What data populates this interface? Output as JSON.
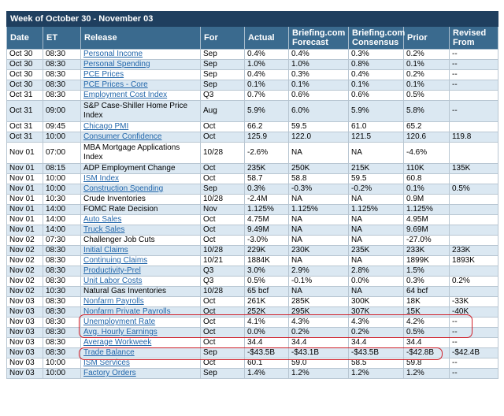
{
  "title": "Week of October 30 - November 03",
  "columns": {
    "date": "Date",
    "et": "ET",
    "release": "Release",
    "for": "For",
    "actual": "Actual",
    "briefing_line1": "Briefing.com",
    "briefing_line2": "Forecast",
    "consensus_line1": "Briefing.com",
    "consensus_line2": "Consensus",
    "prior": "Prior",
    "revised_line1": "Revised",
    "revised_line2": "From"
  },
  "rows": [
    {
      "date": "Oct 30",
      "et": "08:30",
      "release": "Personal Income",
      "link": true,
      "for": "Sep",
      "actual": "0.4%",
      "forecast": "0.4%",
      "consensus": "0.3%",
      "prior": "0.2%",
      "revised": "--"
    },
    {
      "date": "Oct 30",
      "et": "08:30",
      "release": "Personal Spending",
      "link": true,
      "for": "Sep",
      "actual": "1.0%",
      "forecast": "1.0%",
      "consensus": "0.8%",
      "prior": "0.1%",
      "revised": "--"
    },
    {
      "date": "Oct 30",
      "et": "08:30",
      "release": "PCE Prices",
      "link": true,
      "for": "Sep",
      "actual": "0.4%",
      "forecast": "0.3%",
      "consensus": "0.4%",
      "prior": "0.2%",
      "revised": "--"
    },
    {
      "date": "Oct 30",
      "et": "08:30",
      "release": "PCE Prices - Core",
      "link": true,
      "for": "Sep",
      "actual": "0.1%",
      "forecast": "0.1%",
      "consensus": "0.1%",
      "prior": "0.1%",
      "revised": "--"
    },
    {
      "date": "Oct 31",
      "et": "08:30",
      "release": "Employment Cost Index",
      "link": true,
      "for": "Q3",
      "actual": "0.7%",
      "forecast": "0.6%",
      "consensus": "0.6%",
      "prior": "0.5%",
      "revised": ""
    },
    {
      "date": "Oct 31",
      "et": "09:00",
      "release": "S&P Case-Shiller Home Price Index",
      "link": false,
      "for": "Aug",
      "actual": "5.9%",
      "forecast": "6.0%",
      "consensus": "5.9%",
      "prior": "5.8%",
      "revised": "--",
      "tall": true
    },
    {
      "date": "Oct 31",
      "et": "09:45",
      "release": "Chicago PMI",
      "link": true,
      "for": "Oct",
      "actual": "66.2",
      "forecast": "59.5",
      "consensus": "61.0",
      "prior": "65.2",
      "revised": ""
    },
    {
      "date": "Oct 31",
      "et": "10:00",
      "release": "Consumer Confidence",
      "link": true,
      "for": "Oct",
      "actual": "125.9",
      "forecast": "122.0",
      "consensus": "121.5",
      "prior": "120.6",
      "revised": "119.8"
    },
    {
      "date": "Nov 01",
      "et": "07:00",
      "release": "MBA Mortgage Applications Index",
      "link": false,
      "for": "10/28",
      "actual": "-2.6%",
      "forecast": "NA",
      "consensus": "NA",
      "prior": "-4.6%",
      "revised": "",
      "tall": true
    },
    {
      "date": "Nov 01",
      "et": "08:15",
      "release": "ADP Employment Change",
      "link": false,
      "for": "Oct",
      "actual": "235K",
      "forecast": "250K",
      "consensus": "215K",
      "prior": "110K",
      "revised": "135K"
    },
    {
      "date": "Nov 01",
      "et": "10:00",
      "release": "ISM Index",
      "link": true,
      "for": "Oct",
      "actual": "58.7",
      "forecast": "58.8",
      "consensus": "59.5",
      "prior": "60.8",
      "revised": ""
    },
    {
      "date": "Nov 01",
      "et": "10:00",
      "release": "Construction Spending",
      "link": true,
      "for": "Sep",
      "actual": "0.3%",
      "forecast": "-0.3%",
      "consensus": "-0.2%",
      "prior": "0.1%",
      "revised": "0.5%"
    },
    {
      "date": "Nov 01",
      "et": "10:30",
      "release": "Crude Inventories",
      "link": false,
      "for": "10/28",
      "actual": "-2.4M",
      "forecast": "NA",
      "consensus": "NA",
      "prior": "0.9M",
      "revised": ""
    },
    {
      "date": "Nov 01",
      "et": "14:00",
      "release": "FOMC Rate Decision",
      "link": false,
      "for": "Nov",
      "actual": "1.125%",
      "forecast": "1.125%",
      "consensus": "1.125%",
      "prior": "1.125%",
      "revised": ""
    },
    {
      "date": "Nov 01",
      "et": "14:00",
      "release": "Auto Sales",
      "link": true,
      "for": "Oct",
      "actual": "4.75M",
      "forecast": "NA",
      "consensus": "NA",
      "prior": "4.95M",
      "revised": ""
    },
    {
      "date": "Nov 01",
      "et": "14:00",
      "release": "Truck Sales",
      "link": true,
      "for": "Oct",
      "actual": "9.49M",
      "forecast": "NA",
      "consensus": "NA",
      "prior": "9.69M",
      "revised": ""
    },
    {
      "date": "Nov 02",
      "et": "07:30",
      "release": "Challenger Job Cuts",
      "link": false,
      "for": "Oct",
      "actual": "-3.0%",
      "forecast": "NA",
      "consensus": "NA",
      "prior": "-27.0%",
      "revised": ""
    },
    {
      "date": "Nov 02",
      "et": "08:30",
      "release": "Initial Claims",
      "link": true,
      "for": "10/28",
      "actual": "229K",
      "forecast": "230K",
      "consensus": "235K",
      "prior": "233K",
      "revised": "233K"
    },
    {
      "date": "Nov 02",
      "et": "08:30",
      "release": "Continuing Claims",
      "link": true,
      "for": "10/21",
      "actual": "1884K",
      "forecast": "NA",
      "consensus": "NA",
      "prior": "1899K",
      "revised": "1893K"
    },
    {
      "date": "Nov 02",
      "et": "08:30",
      "release": "Productivity-Prel",
      "link": true,
      "for": "Q3",
      "actual": "3.0%",
      "forecast": "2.9%",
      "consensus": "2.8%",
      "prior": "1.5%",
      "revised": ""
    },
    {
      "date": "Nov 02",
      "et": "08:30",
      "release": "Unit Labor Costs",
      "link": true,
      "for": "Q3",
      "actual": "0.5%",
      "forecast": "-0.1%",
      "consensus": "0.0%",
      "prior": "0.3%",
      "revised": "0.2%"
    },
    {
      "date": "Nov 02",
      "et": "10:30",
      "release": "Natural Gas Inventories",
      "link": false,
      "for": "10/28",
      "actual": "65 bcf",
      "forecast": "NA",
      "consensus": "NA",
      "prior": "64 bcf",
      "revised": ""
    },
    {
      "date": "Nov 03",
      "et": "08:30",
      "release": "Nonfarm Payrolls",
      "link": true,
      "for": "Oct",
      "actual": "261K",
      "forecast": "285K",
      "consensus": "300K",
      "prior": "18K",
      "revised": "-33K"
    },
    {
      "date": "Nov 03",
      "et": "08:30",
      "release": "Nonfarm Private Payrolls",
      "link": true,
      "for": "Oct",
      "actual": "252K",
      "forecast": "295K",
      "consensus": "307K",
      "prior": "15K",
      "revised": "-40K"
    },
    {
      "date": "Nov 03",
      "et": "08:30",
      "release": "Unemployment Rate",
      "link": true,
      "for": "Oct",
      "actual": "4.1%",
      "forecast": "4.3%",
      "consensus": "4.3%",
      "prior": "4.2%",
      "revised": "--"
    },
    {
      "date": "Nov 03",
      "et": "08:30",
      "release": "Avg. Hourly Earnings",
      "link": true,
      "for": "Oct",
      "actual": "0.0%",
      "forecast": "0.2%",
      "consensus": "0.2%",
      "prior": "0.5%",
      "revised": "--"
    },
    {
      "date": "Nov 03",
      "et": "08:30",
      "release": "Average Workweek",
      "link": true,
      "for": "Oct",
      "actual": "34.4",
      "forecast": "34.4",
      "consensus": "34.4",
      "prior": "34.4",
      "revised": "--"
    },
    {
      "date": "Nov 03",
      "et": "08:30",
      "release": "Trade Balance",
      "link": true,
      "for": "Sep",
      "actual": "-$43.5B",
      "forecast": "-$43.1B",
      "consensus": "-$43.5B",
      "prior": "-$42.8B",
      "revised": "-$42.4B"
    },
    {
      "date": "Nov 03",
      "et": "10:00",
      "release": "ISM Services",
      "link": true,
      "for": "Oct",
      "actual": "60.1",
      "forecast": "59.0",
      "consensus": "58.5",
      "prior": "59.8",
      "revised": "--"
    },
    {
      "date": "Nov 03",
      "et": "10:00",
      "release": "Factory Orders",
      "link": true,
      "for": "Sep",
      "actual": "1.4%",
      "forecast": "1.2%",
      "consensus": "1.2%",
      "prior": "1.2%",
      "revised": "--"
    }
  ],
  "colors": {
    "title_bg": "#1f3f5f",
    "header_bg": "#3a6a8e",
    "row_alt": "#dbe8f2",
    "link": "#2266aa",
    "highlight_oval": "#d0202a"
  }
}
